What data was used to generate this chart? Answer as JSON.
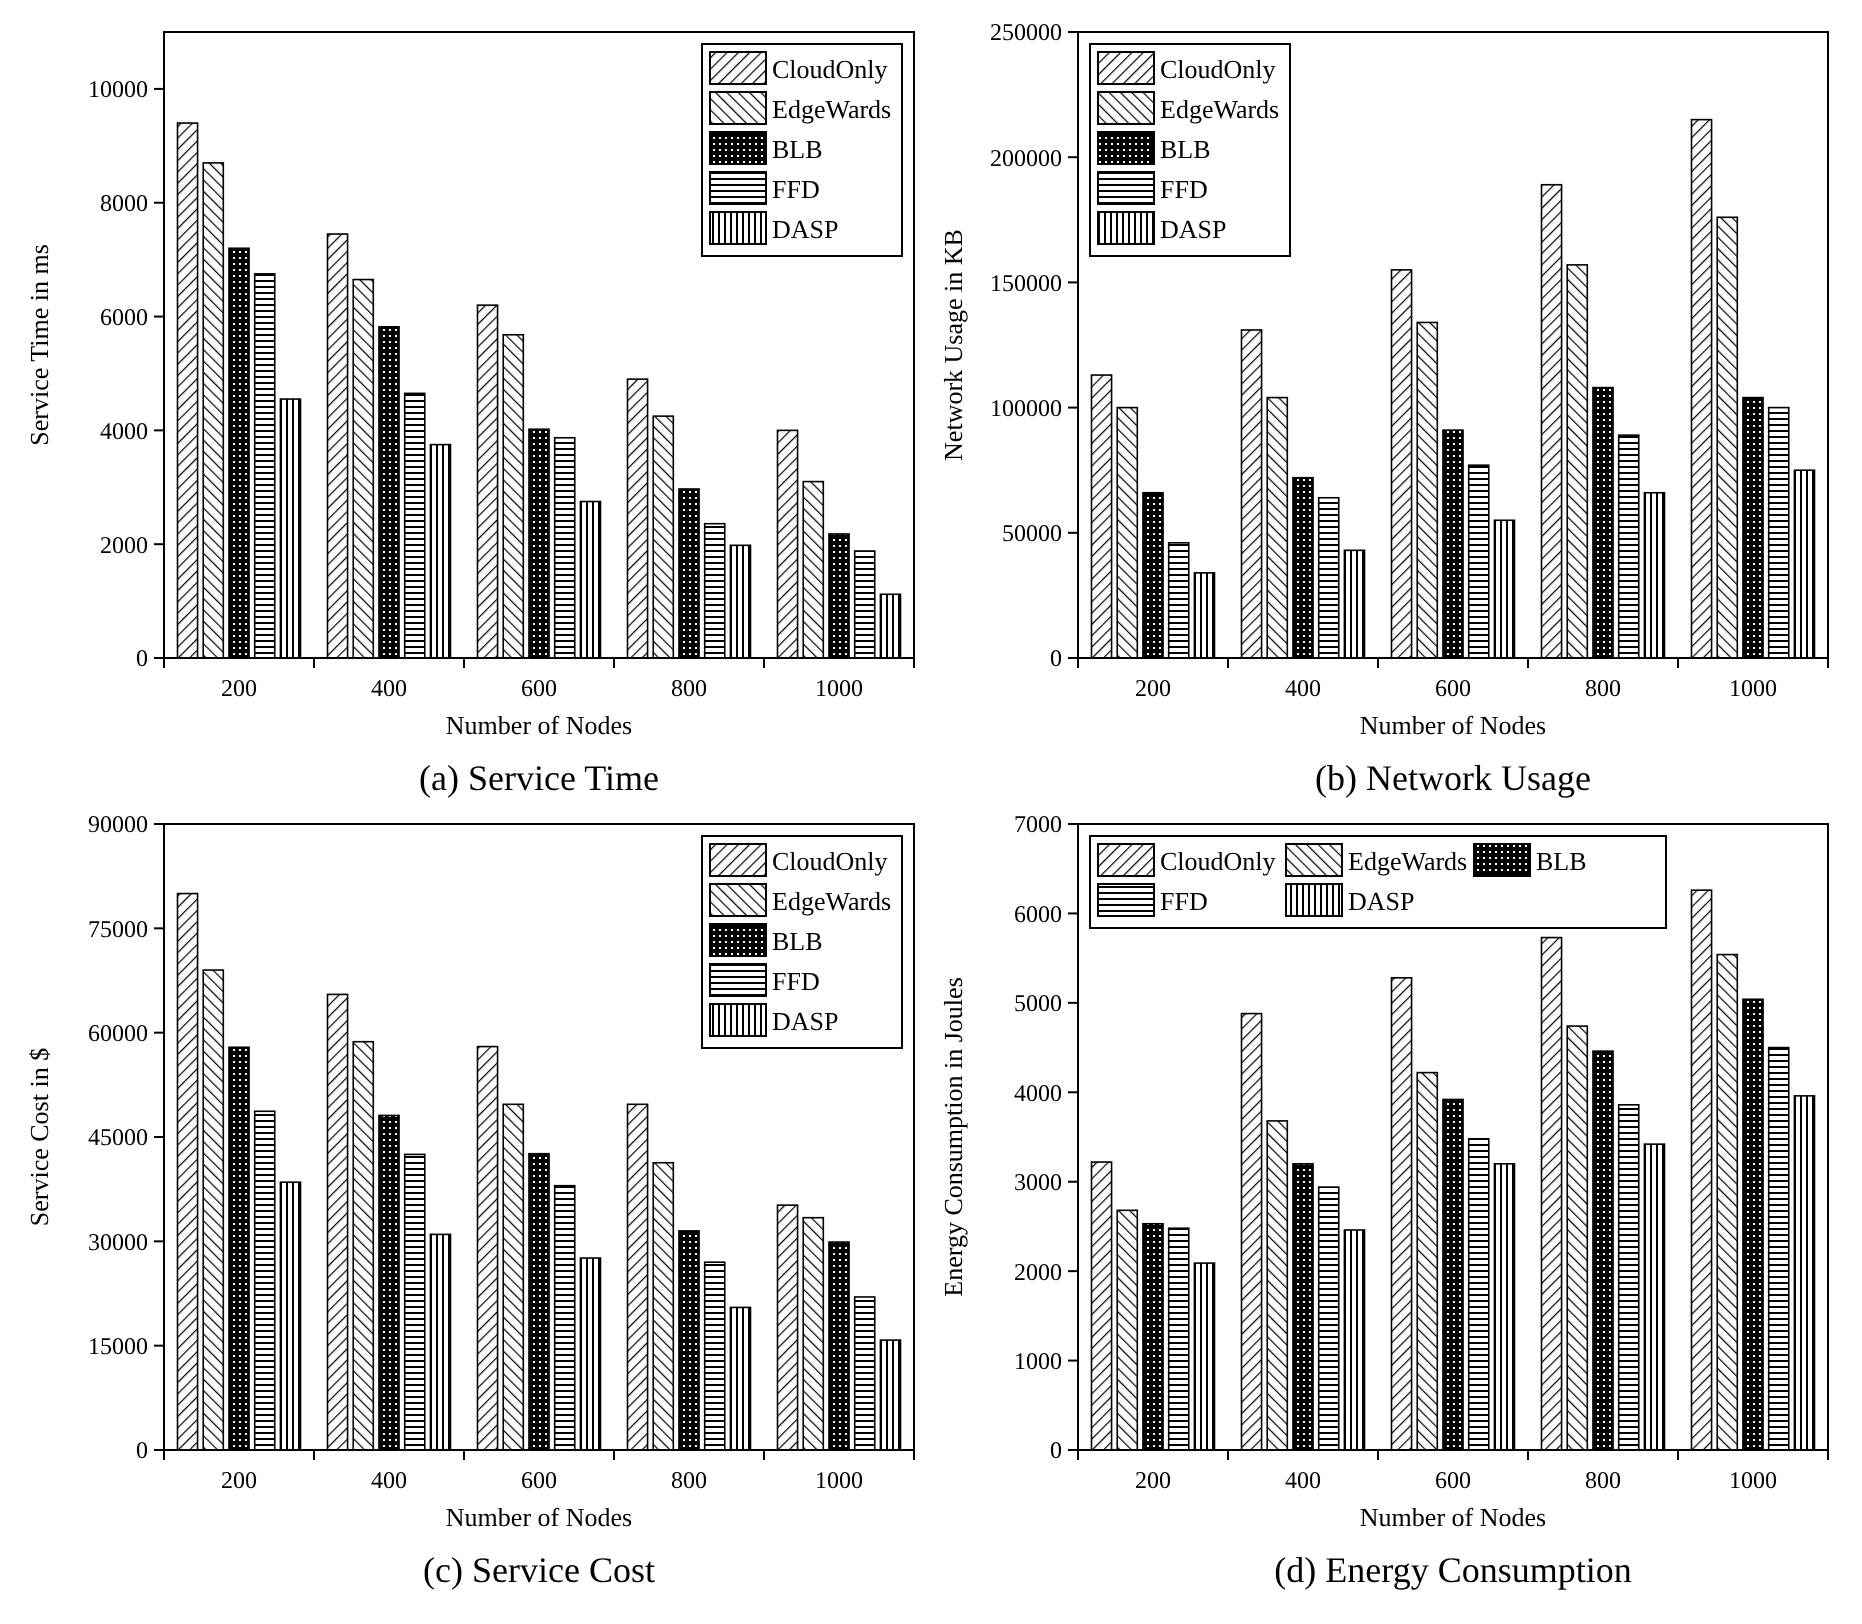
{
  "chart_data": [
    {
      "type": "bar",
      "title": "(a) Service Time",
      "xlabel": "Number of Nodes",
      "ylabel": "Service Time in ms",
      "categories": [
        "200",
        "400",
        "600",
        "800",
        "1000"
      ],
      "ylim": [
        0,
        11000
      ],
      "yticks": [
        0,
        2000,
        4000,
        6000,
        8000,
        10000
      ],
      "legend": "top right",
      "series": [
        {
          "name": "CloudOnly",
          "color": "#000000",
          "values": [
            9400,
            7450,
            6200,
            4900,
            4000
          ]
        },
        {
          "name": "EdgeWards",
          "color": "#000000",
          "values": [
            8700,
            6650,
            5680,
            4250,
            3100
          ]
        },
        {
          "name": "BLB",
          "color": "#000000",
          "values": [
            7200,
            5820,
            4020,
            2970,
            2180
          ]
        },
        {
          "name": "FFD",
          "color": "#000000",
          "values": [
            6750,
            4650,
            3870,
            2360,
            1880
          ]
        },
        {
          "name": "DASP",
          "color": "#000000",
          "values": [
            4550,
            3750,
            2750,
            1980,
            1120
          ]
        }
      ]
    },
    {
      "type": "bar",
      "title": "(b) Network Usage",
      "xlabel": "Number of Nodes",
      "ylabel": "Network Usage in KB",
      "categories": [
        "200",
        "400",
        "600",
        "800",
        "1000"
      ],
      "ylim": [
        0,
        250000
      ],
      "yticks": [
        0,
        50000,
        100000,
        150000,
        200000,
        250000
      ],
      "legend": "top left",
      "series": [
        {
          "name": "CloudOnly",
          "color": "#000000",
          "values": [
            113000,
            131000,
            155000,
            189000,
            215000
          ]
        },
        {
          "name": "EdgeWards",
          "color": "#000000",
          "values": [
            100000,
            104000,
            134000,
            157000,
            176000
          ]
        },
        {
          "name": "BLB",
          "color": "#000000",
          "values": [
            66000,
            72000,
            91000,
            108000,
            104000
          ]
        },
        {
          "name": "FFD",
          "color": "#000000",
          "values": [
            46000,
            64000,
            77000,
            89000,
            100000
          ]
        },
        {
          "name": "DASP",
          "color": "#000000",
          "values": [
            34000,
            43000,
            55000,
            66000,
            75000
          ]
        }
      ]
    },
    {
      "type": "bar",
      "title": "(c) Service Cost",
      "xlabel": "Number of Nodes",
      "ylabel": "Service Cost in $",
      "categories": [
        "200",
        "400",
        "600",
        "800",
        "1000"
      ],
      "ylim": [
        0,
        90000
      ],
      "yticks": [
        0,
        15000,
        30000,
        45000,
        60000,
        75000,
        90000
      ],
      "legend": "top right",
      "series": [
        {
          "name": "CloudOnly",
          "color": "#000000",
          "values": [
            80000,
            65500,
            58000,
            49700,
            35200
          ]
        },
        {
          "name": "EdgeWards",
          "color": "#000000",
          "values": [
            69000,
            58700,
            49700,
            41300,
            33400
          ]
        },
        {
          "name": "BLB",
          "color": "#000000",
          "values": [
            57900,
            48100,
            42600,
            31500,
            29900
          ]
        },
        {
          "name": "FFD",
          "color": "#000000",
          "values": [
            48700,
            42500,
            38000,
            27000,
            22000
          ]
        },
        {
          "name": "DASP",
          "color": "#000000",
          "values": [
            38500,
            31000,
            27600,
            20500,
            15800
          ]
        }
      ]
    },
    {
      "type": "bar",
      "title": "(d) Energy Consumption",
      "xlabel": "Number of Nodes",
      "ylabel": "Energy Consumption in Joules",
      "categories": [
        "200",
        "400",
        "600",
        "800",
        "1000"
      ],
      "ylim": [
        0,
        7000
      ],
      "yticks": [
        0,
        1000,
        2000,
        3000,
        4000,
        5000,
        6000,
        7000
      ],
      "legend": "top left",
      "series": [
        {
          "name": "CloudOnly",
          "color": "#000000",
          "values": [
            3220,
            4880,
            5280,
            5730,
            6260
          ]
        },
        {
          "name": "EdgeWards",
          "color": "#000000",
          "values": [
            2680,
            3680,
            4220,
            4740,
            5540
          ]
        },
        {
          "name": "BLB",
          "color": "#000000",
          "values": [
            2530,
            3200,
            3920,
            4460,
            5040
          ]
        },
        {
          "name": "FFD",
          "color": "#000000",
          "values": [
            2480,
            2940,
            3480,
            3860,
            4500
          ]
        },
        {
          "name": "DASP",
          "color": "#000000",
          "values": [
            2090,
            2460,
            3200,
            3420,
            3960
          ]
        }
      ]
    }
  ]
}
